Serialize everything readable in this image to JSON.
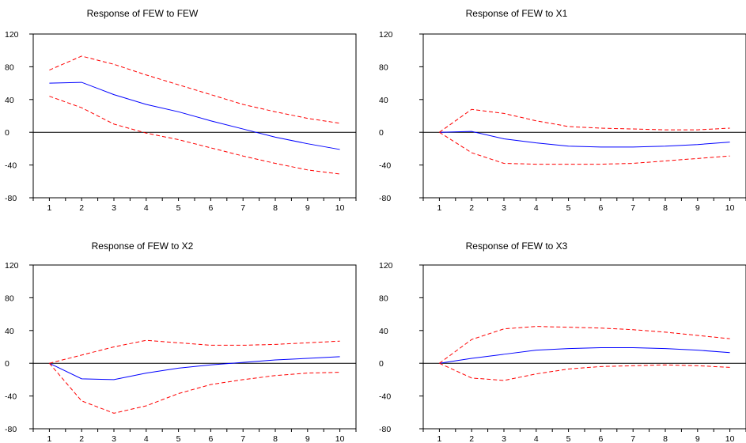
{
  "chart_data": [
    {
      "type": "line",
      "title": "Response of FEW to FEW",
      "x": [
        1,
        2,
        3,
        4,
        5,
        6,
        7,
        8,
        9,
        10
      ],
      "ylim": [
        -80,
        120
      ],
      "yticks": [
        120,
        80,
        40,
        0,
        -40,
        -80
      ],
      "series": [
        {
          "role": "response",
          "color": "#0000ff",
          "dash": "solid",
          "values": [
            60,
            61,
            46,
            34,
            25,
            14,
            4,
            -6,
            -14,
            -21
          ]
        },
        {
          "role": "upper band",
          "color": "#ff0000",
          "dash": "dashed",
          "values": [
            76,
            93,
            83,
            70,
            58,
            46,
            34,
            25,
            17,
            11
          ]
        },
        {
          "role": "lower band",
          "color": "#ff0000",
          "dash": "dashed",
          "values": [
            44,
            30,
            10,
            -1,
            -9,
            -19,
            -29,
            -38,
            -46,
            -51
          ]
        }
      ]
    },
    {
      "type": "line",
      "title": "Response of FEW to X1",
      "x": [
        1,
        2,
        3,
        4,
        5,
        6,
        7,
        8,
        9,
        10
      ],
      "ylim": [
        -80,
        120
      ],
      "yticks": [
        120,
        80,
        40,
        0,
        -40,
        -80
      ],
      "series": [
        {
          "role": "response",
          "color": "#0000ff",
          "dash": "solid",
          "values": [
            0,
            1,
            -8,
            -13,
            -17,
            -18,
            -18,
            -17,
            -15,
            -12
          ]
        },
        {
          "role": "upper band",
          "color": "#ff0000",
          "dash": "dashed",
          "values": [
            0,
            28,
            23,
            14,
            7,
            5,
            4,
            3,
            3,
            5
          ]
        },
        {
          "role": "lower band",
          "color": "#ff0000",
          "dash": "dashed",
          "values": [
            0,
            -25,
            -38,
            -39,
            -39,
            -39,
            -38,
            -35,
            -32,
            -29
          ]
        }
      ]
    },
    {
      "type": "line",
      "title": "Response of FEW to X2",
      "x": [
        1,
        2,
        3,
        4,
        5,
        6,
        7,
        8,
        9,
        10
      ],
      "ylim": [
        -80,
        120
      ],
      "yticks": [
        120,
        80,
        40,
        0,
        -40,
        -80
      ],
      "series": [
        {
          "role": "response",
          "color": "#0000ff",
          "dash": "solid",
          "values": [
            0,
            -19,
            -20,
            -12,
            -6,
            -2,
            1,
            4,
            6,
            8
          ]
        },
        {
          "role": "upper band",
          "color": "#ff0000",
          "dash": "dashed",
          "values": [
            0,
            10,
            20,
            28,
            25,
            22,
            22,
            23,
            25,
            27
          ]
        },
        {
          "role": "lower band",
          "color": "#ff0000",
          "dash": "dashed",
          "values": [
            0,
            -46,
            -61,
            -52,
            -37,
            -26,
            -20,
            -15,
            -12,
            -11
          ]
        }
      ]
    },
    {
      "type": "line",
      "title": "Response of FEW to X3",
      "x": [
        1,
        2,
        3,
        4,
        5,
        6,
        7,
        8,
        9,
        10
      ],
      "ylim": [
        -80,
        120
      ],
      "yticks": [
        120,
        80,
        40,
        0,
        -40,
        -80
      ],
      "series": [
        {
          "role": "response",
          "color": "#0000ff",
          "dash": "solid",
          "values": [
            0,
            6,
            11,
            16,
            18,
            19,
            19,
            18,
            16,
            13
          ]
        },
        {
          "role": "upper band",
          "color": "#ff0000",
          "dash": "dashed",
          "values": [
            0,
            29,
            42,
            45,
            44,
            43,
            41,
            38,
            34,
            30
          ]
        },
        {
          "role": "lower band",
          "color": "#ff0000",
          "dash": "dashed",
          "values": [
            0,
            -18,
            -21,
            -13,
            -7,
            -4,
            -3,
            -2,
            -3,
            -5
          ]
        }
      ]
    }
  ]
}
